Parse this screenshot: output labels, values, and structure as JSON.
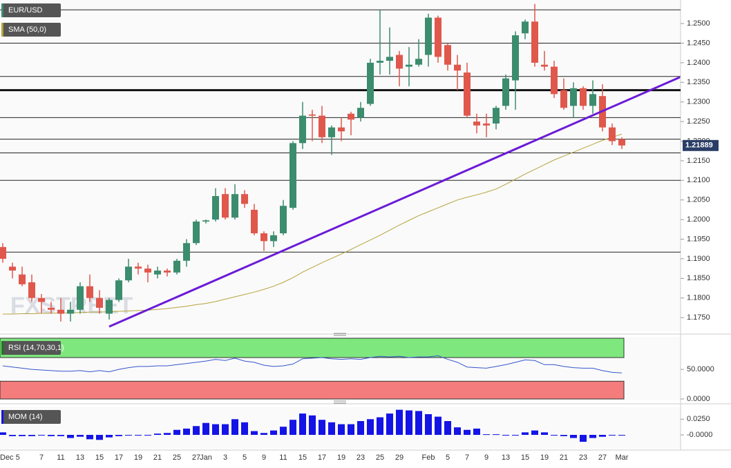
{
  "chart_data": [
    {
      "type": "candlestick",
      "legend": "EUR/USD",
      "up_color": "#3c8c6e",
      "down_color": "#e0574c",
      "categories": [
        "Dec 5",
        null,
        null,
        null,
        "7",
        null,
        "11",
        null,
        "13",
        null,
        "15",
        null,
        "17",
        null,
        "19",
        null,
        "21",
        null,
        "25",
        null,
        "27",
        "Jan",
        null,
        "3",
        null,
        "5",
        null,
        "9",
        null,
        "11",
        null,
        "15",
        null,
        "17",
        null,
        "19",
        null,
        "23",
        null,
        "25",
        null,
        "29",
        null,
        null,
        "Feb",
        null,
        "5",
        null,
        "7",
        null,
        "9",
        null,
        "13",
        null,
        "15",
        null,
        "19",
        null,
        "21",
        null,
        "23",
        null,
        "27",
        null,
        "Mar"
      ],
      "ohlc": [
        [
          1.193,
          1.194,
          1.189,
          1.19
        ],
        [
          1.188,
          1.189,
          1.185,
          1.187
        ],
        [
          1.186,
          1.188,
          1.183,
          1.1835
        ],
        [
          1.184,
          1.186,
          1.179,
          1.18
        ],
        [
          1.18,
          1.181,
          1.176,
          1.179
        ],
        [
          1.1775,
          1.179,
          1.176,
          1.177
        ],
        [
          1.177,
          1.18,
          1.174,
          1.176
        ],
        [
          1.176,
          1.179,
          1.174,
          1.177
        ],
        [
          1.177,
          1.184,
          1.176,
          1.183
        ],
        [
          1.183,
          1.186,
          1.179,
          1.18
        ],
        [
          1.18,
          1.182,
          1.176,
          1.1775
        ],
        [
          1.176,
          1.18,
          1.1745,
          1.1795
        ],
        [
          1.1795,
          1.185,
          1.179,
          1.1845
        ],
        [
          1.1845,
          1.19,
          1.184,
          1.188
        ],
        [
          1.188,
          1.189,
          1.186,
          1.1875
        ],
        [
          1.1875,
          1.1885,
          1.184,
          1.1865
        ],
        [
          1.186,
          1.188,
          1.185,
          1.187
        ],
        [
          1.187,
          1.1875,
          1.1855,
          1.1865
        ],
        [
          1.1865,
          1.19,
          1.186,
          1.1895
        ],
        [
          1.1895,
          1.195,
          1.188,
          1.194
        ],
        [
          1.194,
          1.2,
          1.1935,
          1.1995
        ],
        [
          1.1995,
          1.2,
          1.199,
          1.1998
        ],
        [
          1.2,
          1.208,
          1.1995,
          1.206
        ],
        [
          1.2065,
          1.208,
          1.2,
          1.2005
        ],
        [
          1.2005,
          1.209,
          1.2,
          1.2065
        ],
        [
          1.2065,
          1.2075,
          1.203,
          1.204
        ],
        [
          1.2025,
          1.204,
          1.196,
          1.1965
        ],
        [
          1.1965,
          1.197,
          1.192,
          1.1945
        ],
        [
          1.1945,
          1.197,
          1.193,
          1.196
        ],
        [
          1.1965,
          1.205,
          1.196,
          1.2035
        ],
        [
          1.203,
          1.22,
          1.2025,
          1.2195
        ],
        [
          1.2195,
          1.23,
          1.218,
          1.2265
        ],
        [
          1.2268,
          1.228,
          1.22,
          1.2265
        ],
        [
          1.2265,
          1.229,
          1.2195,
          1.221
        ],
        [
          1.221,
          1.224,
          1.2165,
          1.2235
        ],
        [
          1.2235,
          1.226,
          1.22,
          1.2225
        ],
        [
          1.227,
          1.2275,
          1.2215,
          1.2255
        ],
        [
          1.226,
          1.23,
          1.225,
          1.2285
        ],
        [
          1.2295,
          1.241,
          1.229,
          1.24
        ],
        [
          1.24,
          1.2535,
          1.237,
          1.2405
        ],
        [
          1.2405,
          1.249,
          1.237,
          1.2415
        ],
        [
          1.242,
          1.243,
          1.234,
          1.2385
        ],
        [
          1.239,
          1.244,
          1.234,
          1.2395
        ],
        [
          1.2395,
          1.246,
          1.239,
          1.241
        ],
        [
          1.242,
          1.2525,
          1.239,
          1.2515
        ],
        [
          1.2515,
          1.252,
          1.24,
          1.2415
        ],
        [
          1.2445,
          1.245,
          1.238,
          1.2395
        ],
        [
          1.2395,
          1.242,
          1.233,
          1.238
        ],
        [
          1.2375,
          1.24,
          1.226,
          1.2265
        ],
        [
          1.225,
          1.227,
          1.222,
          1.224
        ],
        [
          1.2245,
          1.227,
          1.221,
          1.224
        ],
        [
          1.2245,
          1.229,
          1.223,
          1.2285
        ],
        [
          1.229,
          1.237,
          1.228,
          1.236
        ],
        [
          1.2355,
          1.248,
          1.228,
          1.247
        ],
        [
          1.2475,
          1.251,
          1.246,
          1.2505
        ],
        [
          1.2505,
          1.255,
          1.239,
          1.24
        ],
        [
          1.2395,
          1.243,
          1.238,
          1.239
        ],
        [
          1.239,
          1.2405,
          1.231,
          1.232
        ],
        [
          1.233,
          1.236,
          1.228,
          1.2285
        ],
        [
          1.229,
          1.235,
          1.226,
          1.2335
        ],
        [
          1.2335,
          1.234,
          1.228,
          1.229
        ],
        [
          1.229,
          1.2355,
          1.227,
          1.232
        ],
        [
          1.2315,
          1.2345,
          1.2225,
          1.2235
        ],
        [
          1.2235,
          1.2245,
          1.219,
          1.22
        ],
        [
          1.2205,
          1.221,
          1.218,
          1.2189
        ]
      ],
      "sma": {
        "name": "SMA (50,0)",
        "color": "#b5a33a",
        "values": [
          1.1759,
          1.1759,
          1.176,
          1.176,
          1.1761,
          1.1761,
          1.1762,
          1.1762,
          1.1763,
          1.1764,
          1.1764,
          1.1765,
          1.1766,
          1.1767,
          1.1768,
          1.1769,
          1.1771,
          1.1773,
          1.1776,
          1.1779,
          1.1783,
          1.1786,
          1.1791,
          1.1797,
          1.1803,
          1.1809,
          1.1815,
          1.1822,
          1.183,
          1.184,
          1.1852,
          1.1866,
          1.1878,
          1.189,
          1.1901,
          1.1912,
          1.1924,
          1.1936,
          1.1948,
          1.196,
          1.1973,
          1.1986,
          1.1998,
          1.201,
          1.202,
          1.203,
          1.204,
          1.205,
          1.2057,
          1.2063,
          1.207,
          1.2078,
          1.209,
          1.2103,
          1.2116,
          1.2128,
          1.214,
          1.2152,
          1.2162,
          1.2172,
          1.2182,
          1.2192,
          1.2202,
          1.221,
          1.2218
        ]
      },
      "levels": [
        1.2535,
        1.245,
        1.2365,
        1.226,
        1.2205,
        1.217,
        1.21,
        1.1917
      ],
      "key_level": 1.233,
      "trendline": {
        "color": "#6a1bd6",
        "x": [
          11,
          70
        ],
        "y": [
          1.1727,
          1.2363
        ]
      },
      "last_price": {
        "value": 1.21889,
        "label": "1.21889"
      },
      "watermark": "FXSTREET",
      "ylim": [
        1.1715,
        1.256
      ],
      "yticks": [
        {
          "value": 1.175,
          "label": "1.1750"
        },
        {
          "value": 1.18,
          "label": "1.1800"
        },
        {
          "value": 1.185,
          "label": "1.1850"
        },
        {
          "value": 1.19,
          "label": "1.1900"
        },
        {
          "value": 1.195,
          "label": "1.1950"
        },
        {
          "value": 1.2,
          "label": "1.2000"
        },
        {
          "value": 1.205,
          "label": "1.2050"
        },
        {
          "value": 1.21,
          "label": "1.2100"
        },
        {
          "value": 1.215,
          "label": "1.2150"
        },
        {
          "value": 1.22,
          "label": "1.2200"
        },
        {
          "value": 1.225,
          "label": "1.2250"
        },
        {
          "value": 1.23,
          "label": "1.2300"
        },
        {
          "value": 1.235,
          "label": "1.2350"
        },
        {
          "value": 1.24,
          "label": "1.2400"
        },
        {
          "value": 1.245,
          "label": "1.2450"
        },
        {
          "value": 1.25,
          "label": "1.2500"
        }
      ]
    },
    {
      "type": "line",
      "legend": "RSI (14,70,30,1)",
      "color": "#3355cc",
      "upper": 70,
      "lower": 30,
      "upper_color": "#7ee87e",
      "lower_color": "#f47c7c",
      "values": [
        56,
        54,
        52,
        50,
        49,
        48,
        47,
        47,
        48,
        46,
        48,
        46,
        50,
        53,
        55,
        55,
        56,
        56,
        58,
        60,
        62,
        64,
        67,
        65,
        69,
        64,
        62,
        57,
        55,
        56,
        59,
        68,
        69,
        70,
        68,
        67,
        68,
        67,
        70,
        72,
        71,
        72,
        70,
        71,
        71,
        73,
        67,
        62,
        54,
        53,
        52,
        55,
        58,
        62,
        66,
        65,
        58,
        58,
        55,
        53,
        52,
        52,
        48,
        45,
        44
      ],
      "ylim": [
        0,
        105
      ],
      "yticks": [
        {
          "value": 0,
          "label": "0.0000"
        },
        {
          "value": 50,
          "label": "50.0000"
        }
      ]
    },
    {
      "type": "bar",
      "legend": "MOM (14)",
      "color": "#1414e6",
      "values": [
        0.004,
        -0.002,
        -0.002,
        -0.002,
        -0.001,
        -0.002,
        -0.002,
        -0.005,
        -0.003,
        -0.007,
        -0.008,
        -0.004,
        -0.002,
        -0.001,
        -0.001,
        0.0,
        0.002,
        0.003,
        0.008,
        0.01,
        0.014,
        0.019,
        0.017,
        0.017,
        0.025,
        0.02,
        0.006,
        0.003,
        0.007,
        0.013,
        0.024,
        0.034,
        0.031,
        0.024,
        0.02,
        0.017,
        0.017,
        0.022,
        0.025,
        0.028,
        0.034,
        0.04,
        0.039,
        0.038,
        0.033,
        0.029,
        0.022,
        0.012,
        0.008,
        0.01,
        0.001,
        0.001,
        -0.001,
        0.0,
        0.004,
        0.007,
        0.004,
        0.0,
        -0.002,
        -0.005,
        -0.011,
        -0.005,
        -0.003,
        -0.001,
        -0.001
      ],
      "ylim": [
        -0.022,
        0.044
      ],
      "yticks": [
        {
          "value": 0,
          "label": "-0.0000"
        },
        {
          "value": 0.025,
          "label": "0.0250"
        }
      ]
    }
  ]
}
